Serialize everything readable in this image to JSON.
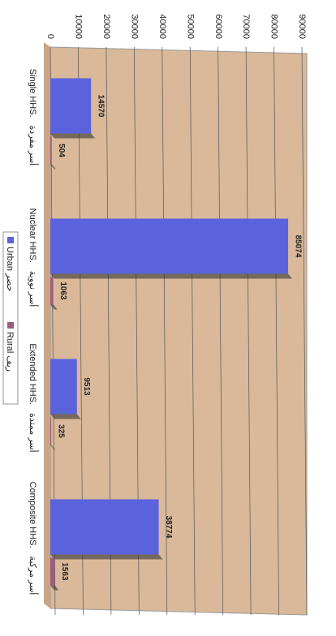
{
  "chart_data": {
    "type": "bar",
    "categories": [
      "Single HHS.",
      "Nuclear HHS.",
      "Extended HHS.",
      "Composite HHS."
    ],
    "categories_ar": [
      "أسر مفردة",
      "أسر نووية",
      "أسر ممتدة",
      "أسر مركبة"
    ],
    "series": [
      {
        "name": "Urban حضر",
        "color": "#5b63dc",
        "values": [
          14570,
          85074,
          9513,
          38774
        ]
      },
      {
        "name": "Rural ريف",
        "color": "#9b5c80",
        "values": [
          504,
          1063,
          325,
          1563
        ]
      }
    ],
    "ylim": [
      0,
      90000
    ],
    "yticks": [
      0,
      10000,
      20000,
      30000,
      40000,
      50000,
      60000,
      70000,
      80000,
      90000
    ],
    "grid": true
  }
}
